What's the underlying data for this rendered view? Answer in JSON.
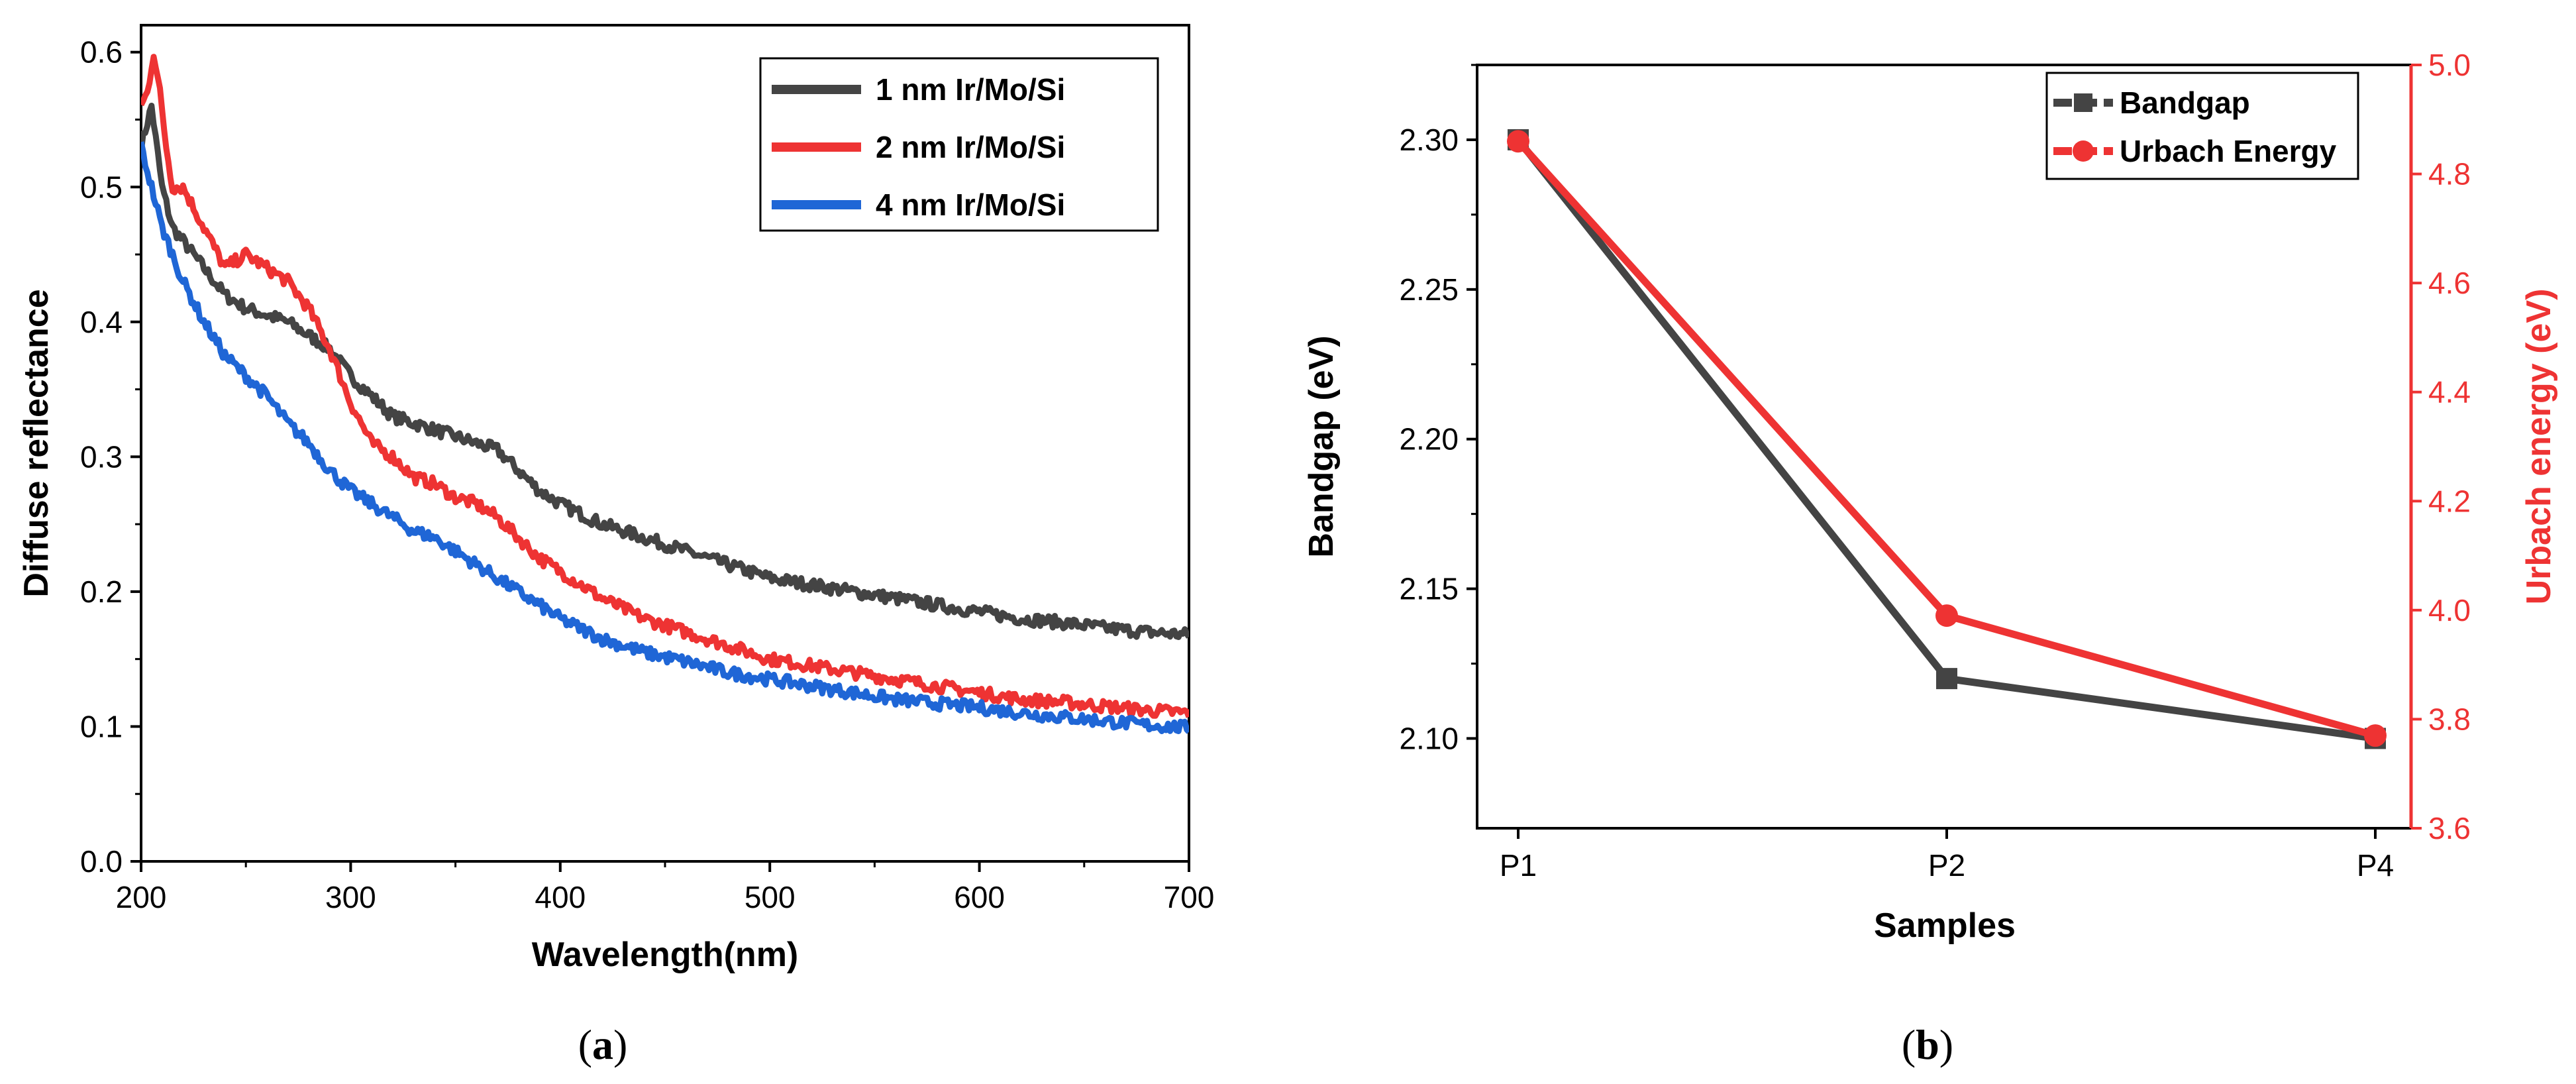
{
  "chart_data": [
    {
      "id": "a",
      "type": "line",
      "caption_open": "(",
      "caption_letter": "a",
      "caption_close": ")",
      "xlabel": "Wavelength(nm)",
      "ylabel": "Diffuse reflectance",
      "xlim": [
        200,
        700
      ],
      "ylim": [
        0.0,
        0.62
      ],
      "xticks": [
        200,
        300,
        400,
        500,
        600,
        700
      ],
      "xtick_labels": [
        "200",
        "300",
        "400",
        "500",
        "600",
        "700"
      ],
      "yticks": [
        0.0,
        0.1,
        0.2,
        0.3,
        0.4,
        0.5,
        0.6
      ],
      "ytick_labels": [
        "0.0",
        "0.1",
        "0.2",
        "0.3",
        "0.4",
        "0.5",
        "0.6"
      ],
      "legend_position": "top-right",
      "series": [
        {
          "name": "1 nm Ir/Mo/Si",
          "color": "#444444",
          "x": [
            200,
            205,
            210,
            215,
            220,
            230,
            240,
            250,
            260,
            270,
            280,
            290,
            300,
            310,
            320,
            330,
            340,
            350,
            360,
            370,
            380,
            390,
            400,
            420,
            440,
            460,
            480,
            500,
            520,
            540,
            560,
            580,
            600,
            620,
            640,
            660,
            680,
            700
          ],
          "y": [
            0.53,
            0.56,
            0.5,
            0.47,
            0.46,
            0.44,
            0.42,
            0.41,
            0.405,
            0.4,
            0.39,
            0.38,
            0.36,
            0.345,
            0.33,
            0.325,
            0.32,
            0.315,
            0.31,
            0.305,
            0.29,
            0.275,
            0.265,
            0.25,
            0.24,
            0.23,
            0.22,
            0.21,
            0.205,
            0.2,
            0.195,
            0.19,
            0.185,
            0.18,
            0.177,
            0.173,
            0.17,
            0.168
          ]
        },
        {
          "name": "2 nm Ir/Mo/Si",
          "color": "#ee3333",
          "x": [
            200,
            203,
            206,
            209,
            212,
            215,
            220,
            230,
            240,
            250,
            260,
            270,
            280,
            290,
            300,
            310,
            320,
            330,
            340,
            350,
            360,
            370,
            380,
            390,
            400,
            420,
            440,
            460,
            480,
            500,
            520,
            540,
            560,
            580,
            600,
            620,
            640,
            660,
            680,
            700
          ],
          "y": [
            0.56,
            0.57,
            0.6,
            0.57,
            0.53,
            0.5,
            0.5,
            0.47,
            0.44,
            0.45,
            0.44,
            0.43,
            0.41,
            0.38,
            0.34,
            0.31,
            0.3,
            0.285,
            0.28,
            0.27,
            0.265,
            0.255,
            0.24,
            0.225,
            0.215,
            0.195,
            0.18,
            0.17,
            0.16,
            0.15,
            0.145,
            0.14,
            0.135,
            0.13,
            0.125,
            0.12,
            0.118,
            0.115,
            0.112,
            0.11
          ]
        },
        {
          "name": "4 nm Ir/Mo/Si",
          "color": "#1f66d6",
          "x": [
            200,
            205,
            210,
            215,
            220,
            230,
            240,
            250,
            260,
            270,
            280,
            290,
            300,
            310,
            320,
            330,
            340,
            350,
            360,
            370,
            380,
            390,
            400,
            420,
            440,
            460,
            480,
            500,
            520,
            540,
            560,
            580,
            600,
            620,
            640,
            660,
            680,
            700
          ],
          "y": [
            0.53,
            0.5,
            0.47,
            0.45,
            0.43,
            0.4,
            0.375,
            0.36,
            0.345,
            0.325,
            0.31,
            0.29,
            0.275,
            0.265,
            0.255,
            0.245,
            0.24,
            0.23,
            0.22,
            0.21,
            0.2,
            0.19,
            0.18,
            0.165,
            0.155,
            0.148,
            0.14,
            0.135,
            0.13,
            0.125,
            0.12,
            0.117,
            0.114,
            0.11,
            0.107,
            0.104,
            0.101,
            0.099
          ]
        }
      ]
    },
    {
      "id": "b",
      "type": "line",
      "caption_open": "(",
      "caption_letter": "b",
      "caption_close": ")",
      "xlabel": "Samples",
      "ylabel": "Bandgap (eV)",
      "y2label": "Urbach energy (eV)",
      "categories": [
        "P1",
        "P2",
        "P4"
      ],
      "ylim": [
        2.07,
        2.325
      ],
      "yticks": [
        2.1,
        2.15,
        2.2,
        2.25,
        2.3
      ],
      "ytick_labels": [
        "2.10",
        "2.15",
        "2.20",
        "2.25",
        "2.30"
      ],
      "y2lim": [
        3.6,
        5.0
      ],
      "y2ticks": [
        3.6,
        3.8,
        4.0,
        4.2,
        4.4,
        4.6,
        4.8,
        5.0
      ],
      "y2tick_labels": [
        "3.6",
        "3.8",
        "4.0",
        "4.2",
        "4.4",
        "4.6",
        "4.8",
        "5.0"
      ],
      "legend_position": "top-right",
      "series": [
        {
          "name": "Bandgap",
          "axis": "left",
          "marker": "square",
          "color": "#444444",
          "values": [
            2.3,
            2.12,
            2.1
          ]
        },
        {
          "name": "Urbach Energy",
          "axis": "right",
          "marker": "circle",
          "color": "#ee3333",
          "values": [
            4.86,
            3.99,
            3.77
          ]
        }
      ]
    }
  ]
}
